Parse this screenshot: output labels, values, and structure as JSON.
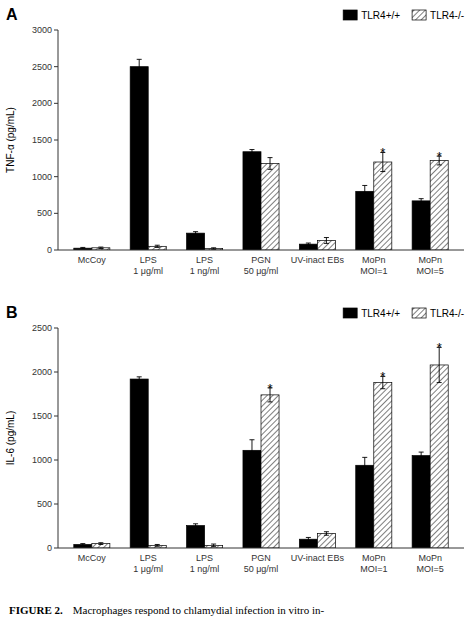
{
  "chart_data": [
    {
      "type": "bar",
      "title": "A",
      "ylabel": "TNF-α (pg/mL)",
      "categories": [
        "McCoy",
        "LPS\n1 μg/ml",
        "LPS\n1 ng/ml",
        "PGN\n50 μg/ml",
        "UV-inact EBs",
        "MoPn\nMOI=1",
        "MoPn\nMOI=5"
      ],
      "series": [
        {
          "name": "TLR4+/+",
          "color": "#000000",
          "values": [
            25,
            2500,
            230,
            1340,
            80,
            800,
            670
          ],
          "errors": [
            10,
            100,
            20,
            30,
            15,
            80,
            30
          ]
        },
        {
          "name": "TLR4-/-",
          "color": "#ffffff",
          "values": [
            30,
            50,
            20,
            1180,
            130,
            1200,
            1220
          ],
          "errors": [
            10,
            15,
            10,
            80,
            40,
            130,
            60
          ]
        }
      ],
      "annotations": [
        {
          "text": "*",
          "category": "MoPn\nMOI=1",
          "series": "TLR4-/-"
        },
        {
          "text": "*",
          "category": "MoPn\nMOI=5",
          "series": "TLR4-/-"
        }
      ],
      "ylim": [
        0,
        3000
      ],
      "yticks": [
        0,
        500,
        1000,
        1500,
        2000,
        2500,
        3000
      ],
      "grid": false,
      "legend": "upper right"
    },
    {
      "type": "bar",
      "title": "B",
      "ylabel": "IL-6 (pg/mL)",
      "categories": [
        "McCoy",
        "LPS\n1 μg/ml",
        "LPS\n1 ng/ml",
        "PGN\n50 μg/ml",
        "UV-inact EBs",
        "MoPn\nMOI=1",
        "MoPn\nMOI=5"
      ],
      "series": [
        {
          "name": "TLR4+/+",
          "color": "#000000",
          "values": [
            40,
            1920,
            255,
            1110,
            100,
            940,
            1050
          ],
          "errors": [
            10,
            25,
            20,
            120,
            20,
            90,
            40
          ]
        },
        {
          "name": "TLR4-/-",
          "color": "#ffffff",
          "values": [
            50,
            30,
            30,
            1740,
            165,
            1880,
            2080
          ],
          "errors": [
            10,
            10,
            15,
            80,
            20,
            70,
            200
          ]
        }
      ],
      "annotations": [
        {
          "text": "*",
          "category": "PGN\n50 μg/ml",
          "series": "TLR4-/-"
        },
        {
          "text": "*",
          "category": "MoPn\nMOI=1",
          "series": "TLR4-/-"
        },
        {
          "text": "*",
          "category": "MoPn\nMOI=5",
          "series": "TLR4-/-"
        }
      ],
      "ylim": [
        0,
        2500
      ],
      "yticks": [
        0,
        500,
        1000,
        1500,
        2000,
        2500
      ],
      "grid": false,
      "legend": "upper right"
    }
  ],
  "caption": {
    "bold": "FIGURE 2.",
    "text": "Macrophages respond to chlamydial infection in vitro in-"
  }
}
